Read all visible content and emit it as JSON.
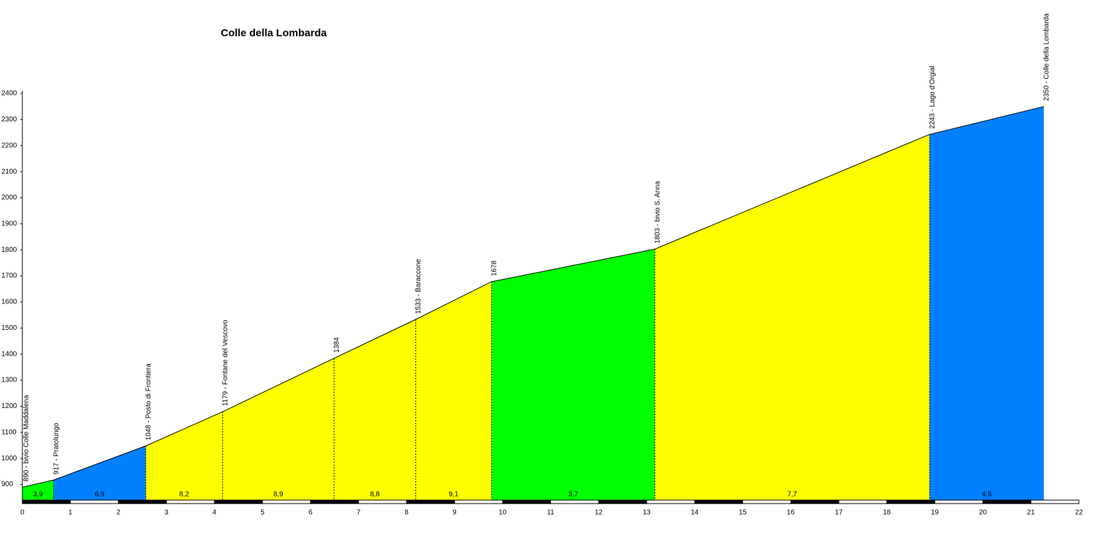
{
  "chart_data": {
    "type": "profile",
    "title": "Colle della Lombarda",
    "x": [
      0,
      0.65,
      2.57,
      4.17,
      6.49,
      8.19,
      9.77,
      13.17,
      18.89,
      21.27
    ],
    "values": [
      890,
      917,
      1048,
      1179,
      1384,
      1533,
      1678,
      1803,
      2243,
      2350
    ],
    "point_labels": [
      "890 - bivio Colle Maddalena",
      "917 - Pratolungo",
      "1048 - Posto di Frontiera",
      "1179 - Fontane del Vescovo",
      "1384",
      "1533 - Baraccone",
      "1678",
      "1803 - bivio S. Anna",
      "2243 - Lago d'Orgial",
      "2350 - Colle della Lombarda"
    ],
    "segments": {
      "values": [
        3.9,
        6.9,
        8.2,
        8.9,
        8.8,
        9.1,
        3.7,
        7.7,
        4.5
      ],
      "value_labels": [
        "3,9",
        "6,9",
        "8,2",
        "8,9",
        "8,8",
        "9,1",
        "3,7",
        "7,7",
        "4,5"
      ],
      "colors": [
        "#00ff00",
        "#0080ff",
        "#ffff00",
        "#ffff00",
        "#ffff00",
        "#ffff00",
        "#00ff00",
        "#ffff00",
        "#0080ff"
      ]
    },
    "xlim": [
      0,
      22
    ],
    "xticks": [
      0,
      1,
      2,
      3,
      4,
      5,
      6,
      7,
      8,
      9,
      10,
      11,
      12,
      13,
      14,
      15,
      16,
      17,
      18,
      19,
      20,
      21,
      22
    ],
    "ylim": [
      840,
      2400
    ],
    "yticks": [
      900,
      1000,
      1100,
      1200,
      1300,
      1400,
      1500,
      1600,
      1700,
      1800,
      1900,
      2000,
      2100,
      2200,
      2300,
      2400
    ]
  }
}
